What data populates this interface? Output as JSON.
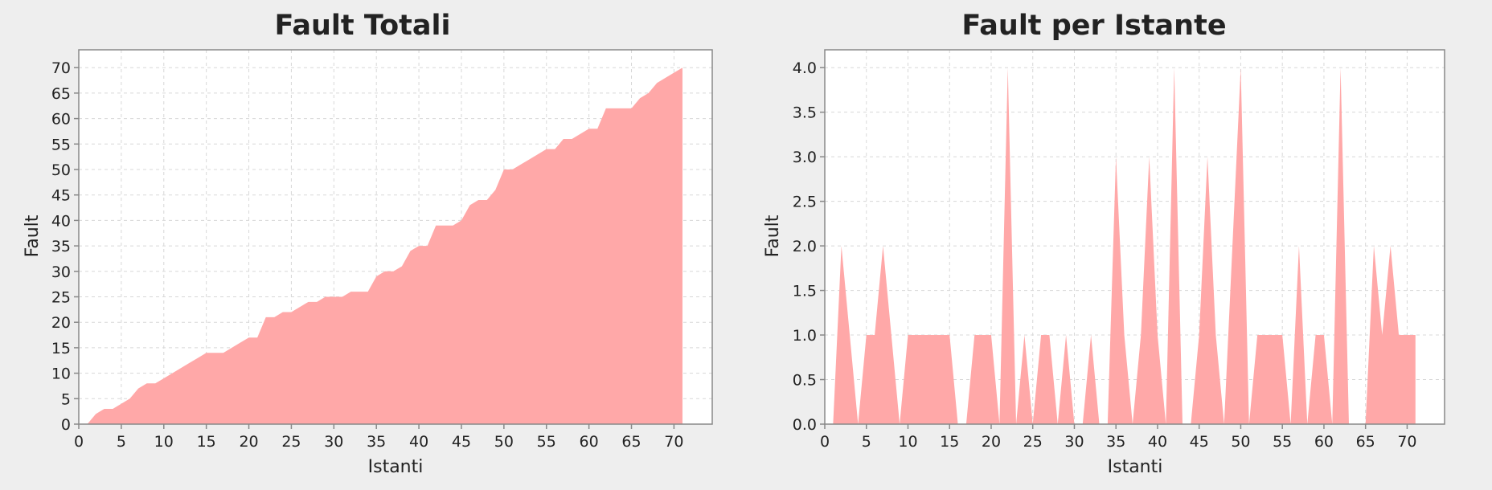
{
  "colors": {
    "page_background": "#eeeeee",
    "plot_background": "#ffffff",
    "area_fill": "#ffa8a8",
    "grid": "#d8d8d8",
    "axis": "#888888",
    "text": "#222222"
  },
  "chart_data": [
    {
      "type": "area",
      "title": "Fault Totali",
      "xlabel": "Istanti",
      "ylabel": "Fault",
      "xlim": [
        0,
        74.5
      ],
      "ylim": [
        0,
        73.5
      ],
      "xticks": [
        0,
        5,
        10,
        15,
        20,
        25,
        30,
        35,
        40,
        45,
        50,
        55,
        60,
        65,
        70
      ],
      "yticks": [
        0,
        5,
        10,
        15,
        20,
        25,
        30,
        35,
        40,
        45,
        50,
        55,
        60,
        65,
        70
      ],
      "grid": true,
      "x": [
        1,
        2,
        3,
        4,
        5,
        6,
        7,
        8,
        9,
        10,
        11,
        12,
        13,
        14,
        15,
        16,
        17,
        18,
        19,
        20,
        21,
        22,
        23,
        24,
        25,
        26,
        27,
        28,
        29,
        30,
        31,
        32,
        33,
        34,
        35,
        36,
        37,
        38,
        39,
        40,
        41,
        42,
        43,
        44,
        45,
        46,
        47,
        48,
        49,
        50,
        51,
        52,
        53,
        54,
        55,
        56,
        57,
        58,
        59,
        60,
        61,
        62,
        63,
        64,
        65,
        66,
        67,
        68,
        69,
        70,
        71
      ],
      "y": [
        0,
        2,
        3,
        3,
        4,
        5,
        7,
        8,
        8,
        9,
        10,
        11,
        12,
        13,
        14,
        14,
        14,
        15,
        16,
        17,
        17,
        21,
        21,
        22,
        22,
        23,
        24,
        24,
        25,
        25,
        25,
        26,
        26,
        26,
        29,
        30,
        30,
        31,
        34,
        35,
        35,
        39,
        39,
        39,
        40,
        43,
        44,
        44,
        46,
        50,
        50,
        51,
        52,
        53,
        54,
        54,
        56,
        56,
        57,
        58,
        58,
        62,
        62,
        62,
        62,
        64,
        65,
        67,
        68,
        69,
        70
      ]
    },
    {
      "type": "area",
      "title": "Fault per Istante",
      "xlabel": "Istanti",
      "ylabel": "Fault",
      "xlim": [
        0,
        74.5
      ],
      "ylim": [
        0,
        4.2
      ],
      "xticks": [
        0,
        5,
        10,
        15,
        20,
        25,
        30,
        35,
        40,
        45,
        50,
        55,
        60,
        65,
        70
      ],
      "yticks": [
        "0.0",
        "0.5",
        "1.0",
        "1.5",
        "2.0",
        "2.5",
        "3.0",
        "3.5",
        "4.0"
      ],
      "grid": true,
      "x": [
        1,
        2,
        3,
        4,
        5,
        6,
        7,
        8,
        9,
        10,
        11,
        12,
        13,
        14,
        15,
        16,
        17,
        18,
        19,
        20,
        21,
        22,
        23,
        24,
        25,
        26,
        27,
        28,
        29,
        30,
        31,
        32,
        33,
        34,
        35,
        36,
        37,
        38,
        39,
        40,
        41,
        42,
        43,
        44,
        45,
        46,
        47,
        48,
        49,
        50,
        51,
        52,
        53,
        54,
        55,
        56,
        57,
        58,
        59,
        60,
        61,
        62,
        63,
        64,
        65,
        66,
        67,
        68,
        69,
        70,
        71
      ],
      "y": [
        0,
        2,
        1,
        0,
        1,
        1,
        2,
        1,
        0,
        1,
        1,
        1,
        1,
        1,
        1,
        0,
        0,
        1,
        1,
        1,
        0,
        4,
        0,
        1,
        0,
        1,
        1,
        0,
        1,
        0,
        0,
        1,
        0,
        0,
        3,
        1,
        0,
        1,
        3,
        1,
        0,
        4,
        0,
        0,
        1,
        3,
        1,
        0,
        2,
        4,
        0,
        1,
        1,
        1,
        1,
        0,
        2,
        0,
        1,
        1,
        0,
        4,
        0,
        0,
        0,
        2,
        1,
        2,
        1,
        1,
        1
      ]
    }
  ]
}
